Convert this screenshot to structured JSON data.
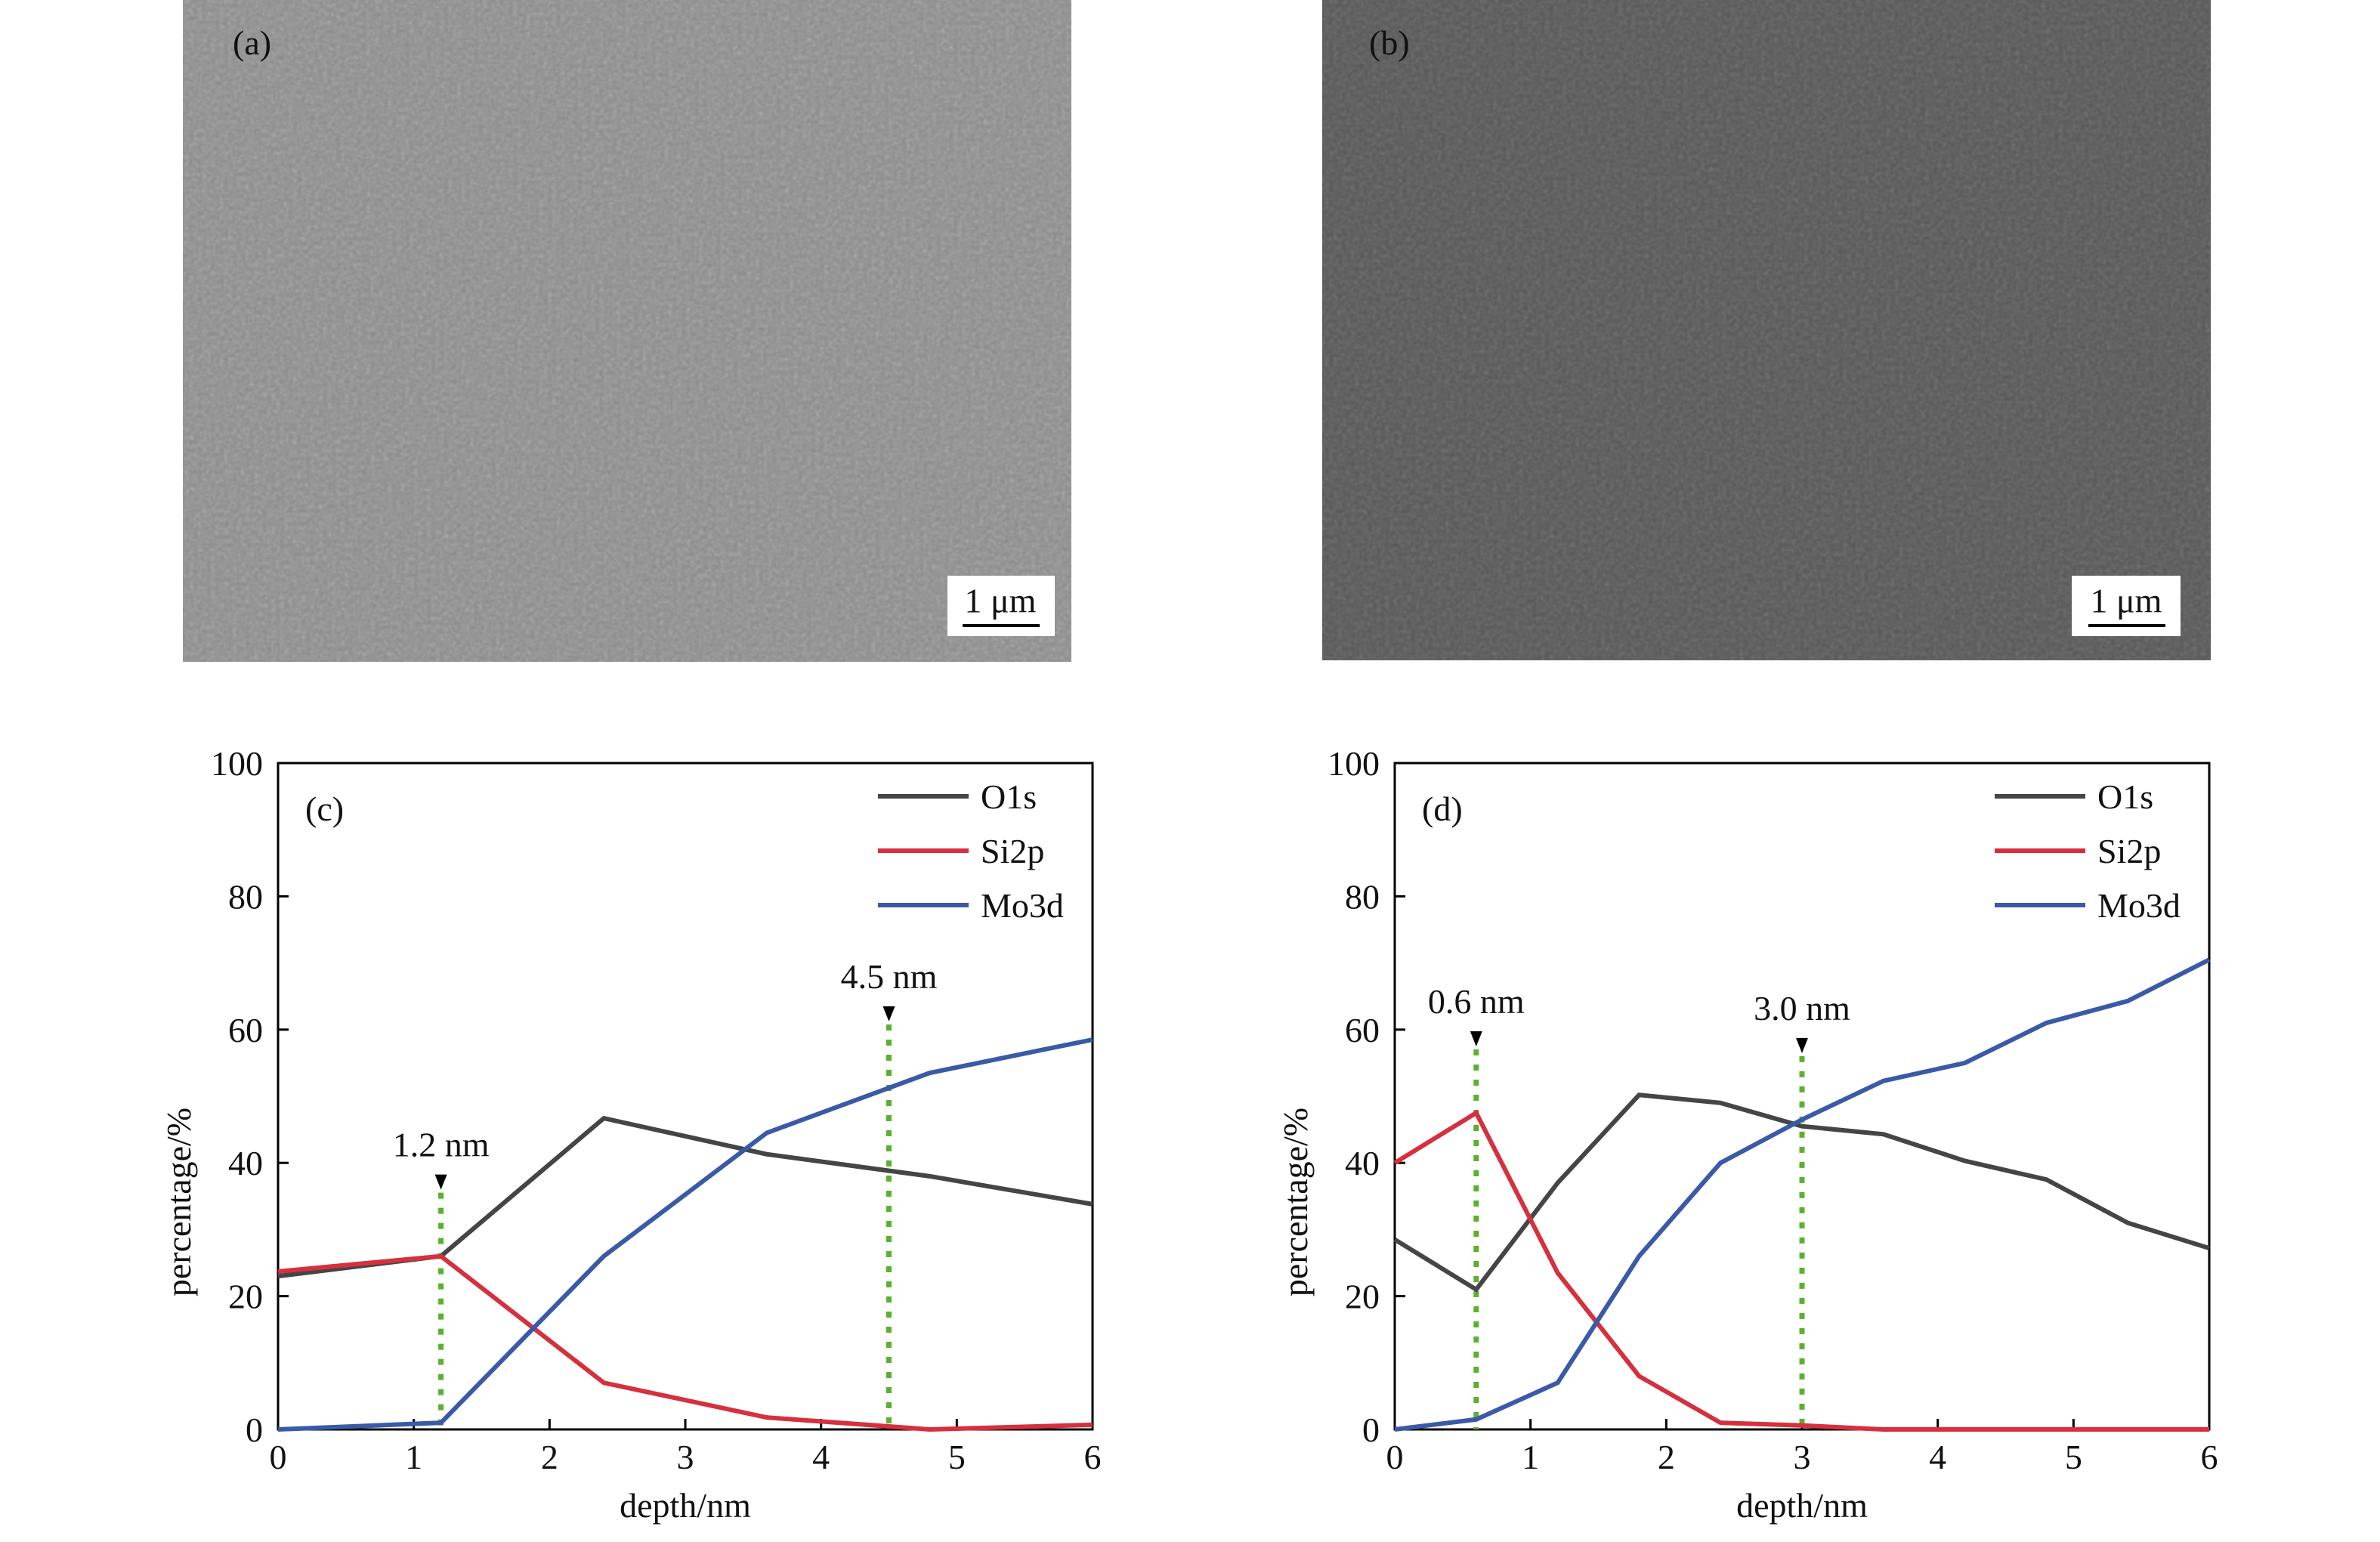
{
  "images": [
    {
      "label": "(a)",
      "scale_bar": "1 μm"
    },
    {
      "label": "(b)",
      "scale_bar": "1 μm"
    }
  ],
  "chart_data": [
    {
      "type": "line",
      "panel": "(c)",
      "xlabel": "depth/nm",
      "ylabel": "percentage/%",
      "x": [
        0,
        1.2,
        2.4,
        3.6,
        4.8,
        6
      ],
      "series": [
        {
          "name": "O1s",
          "color": "#454545",
          "values": [
            23,
            26,
            46.7,
            41.3,
            38,
            33.8
          ]
        },
        {
          "name": "Si2p",
          "color": "#d6303e",
          "values": [
            23.7,
            26,
            7,
            1.8,
            0,
            0.7
          ]
        },
        {
          "name": "Mo3d",
          "color": "#3a5aa8",
          "values": [
            0,
            1,
            26,
            44.5,
            53.5,
            58.5
          ]
        }
      ],
      "annotations": [
        {
          "text": "1.2 nm",
          "x": 1.2
        },
        {
          "text": "4.5 nm",
          "x": 4.5
        }
      ],
      "xlim": [
        0,
        6
      ],
      "xticks": [
        0,
        1,
        2,
        3,
        4,
        5,
        6
      ],
      "ylim": [
        0,
        100
      ],
      "yticks": [
        0,
        20,
        40,
        60,
        80,
        100
      ],
      "legend": "upper right"
    },
    {
      "type": "line",
      "panel": "(d)",
      "xlabel": "depth/nm",
      "ylabel": "percentage/%",
      "x": [
        0,
        0.6,
        1.2,
        1.8,
        2.4,
        3.0,
        3.6,
        4.2,
        4.8,
        5.4,
        6.0
      ],
      "series": [
        {
          "name": "O1s",
          "color": "#454545",
          "values": [
            28.5,
            21,
            37,
            50.2,
            49,
            45.5,
            44.3,
            40.3,
            37.5,
            31,
            27.2
          ]
        },
        {
          "name": "Si2p",
          "color": "#d6303e",
          "values": [
            40,
            47.5,
            23.5,
            8,
            1,
            0.6,
            0,
            0,
            0,
            0,
            0
          ]
        },
        {
          "name": "Mo3d",
          "color": "#3a5aa8",
          "values": [
            0,
            1.5,
            7,
            26,
            40,
            46.5,
            52.3,
            55,
            61,
            64.3,
            70.5
          ]
        }
      ],
      "annotations": [
        {
          "text": "0.6 nm",
          "x": 0.6
        },
        {
          "text": "3.0 nm",
          "x": 3.0
        }
      ],
      "xlim": [
        0,
        6
      ],
      "xticks": [
        0,
        1,
        2,
        3,
        4,
        5,
        6
      ],
      "ylim": [
        0,
        100
      ],
      "yticks": [
        0,
        20,
        40,
        60,
        80,
        100
      ],
      "legend": "upper right"
    }
  ]
}
